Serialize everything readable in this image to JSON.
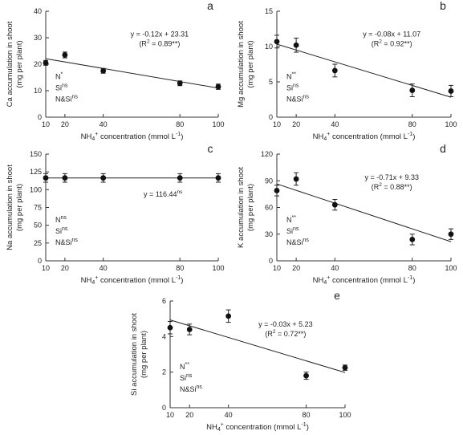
{
  "chart_data": [
    {
      "type": "scatter",
      "panel_label": "a",
      "xlabel_main": "NH",
      "xlabel_sub": "4",
      "xlabel_sup": "+",
      "xlabel_rest": " concentration (mmol L",
      "xlabel_exp": "-1",
      "xlabel_close": ")",
      "ylabel_1": "Ca accumulation in shoot",
      "ylabel_2": "(mg per plant)",
      "x_ticks": [
        "10",
        "20",
        "40",
        "80",
        "100"
      ],
      "y_ticks": [
        "0",
        "10",
        "20",
        "30",
        "40"
      ],
      "ylim": [
        0,
        40
      ],
      "x": [
        10,
        20,
        40,
        80,
        100
      ],
      "y": [
        20.5,
        23.5,
        17.5,
        12.8,
        11.5
      ],
      "err": [
        0.9,
        1.1,
        0.9,
        0.9,
        1.0
      ],
      "fit": {
        "intercept": 23.31,
        "slope": -0.12
      },
      "equation": "y = -0.12x + 23.31",
      "r2_prefix": "(R",
      "r2_exp": "2",
      "r2_value": " = 0.89**)",
      "stats": [
        {
          "label": "N",
          "sig": "*"
        },
        {
          "label": "Si",
          "sig": "ns"
        },
        {
          "label": "N&Si",
          "sig": "ns"
        }
      ]
    },
    {
      "type": "scatter",
      "panel_label": "b",
      "xlabel_main": "NH",
      "xlabel_sub": "4",
      "xlabel_sup": "+",
      "xlabel_rest": " concentration (mmol L",
      "xlabel_exp": "-1",
      "xlabel_close": ")",
      "ylabel_1": "Mg accumulation in shoot",
      "ylabel_2": "(mg per plant)",
      "x_ticks": [
        "10",
        "20",
        "40",
        "80",
        "100"
      ],
      "y_ticks": [
        "0",
        "5",
        "10",
        "15"
      ],
      "ylim": [
        0,
        15
      ],
      "x": [
        10,
        20,
        40,
        80,
        100
      ],
      "y": [
        10.7,
        10.2,
        6.6,
        3.8,
        3.7
      ],
      "err": [
        0.9,
        1.0,
        0.9,
        0.9,
        0.8
      ],
      "fit": {
        "intercept": 11.07,
        "slope": -0.08
      },
      "equation": "y = -0.08x + 11.07",
      "r2_prefix": "(R",
      "r2_exp": "2",
      "r2_value": " = 0.92**)",
      "stats": [
        {
          "label": "N",
          "sig": "**"
        },
        {
          "label": "Si",
          "sig": "ns"
        },
        {
          "label": "N&Si",
          "sig": "ns"
        }
      ]
    },
    {
      "type": "scatter",
      "panel_label": "c",
      "xlabel_main": "NH",
      "xlabel_sub": "4",
      "xlabel_sup": "+",
      "xlabel_rest": " concentration (mmol L",
      "xlabel_exp": "-1",
      "xlabel_close": ")",
      "ylabel_1": "Na accumulation in shoot",
      "ylabel_2": "(mg per plant)",
      "x_ticks": [
        "10",
        "20",
        "40",
        "80",
        "100"
      ],
      "y_ticks": [
        "0",
        "25",
        "50",
        "75",
        "100",
        "125",
        "150"
      ],
      "ylim": [
        0,
        150
      ],
      "x": [
        10,
        20,
        40,
        80,
        100
      ],
      "y": [
        116.5,
        116.5,
        116.5,
        116.5,
        116.5
      ],
      "err": [
        6,
        6,
        6,
        6,
        6
      ],
      "fit": {
        "intercept": 116.44,
        "slope": 0
      },
      "equation": "y = 116.44",
      "equation_sup": "ns",
      "stats": [
        {
          "label": "N",
          "sig": "ns"
        },
        {
          "label": "Si",
          "sig": "ns"
        },
        {
          "label": "N&Si",
          "sig": "ns"
        }
      ]
    },
    {
      "type": "scatter",
      "panel_label": "d",
      "xlabel_main": "NH",
      "xlabel_sub": "4",
      "xlabel_sup": "+",
      "xlabel_rest": " concentration (mmol L",
      "xlabel_exp": "-1",
      "xlabel_close": ")",
      "ylabel_1": "K accumulation in shoot",
      "ylabel_2": "(mg per plant)",
      "x_ticks": [
        "10",
        "20",
        "40",
        "80",
        "100"
      ],
      "y_ticks": [
        "0",
        "30",
        "60",
        "90",
        "120"
      ],
      "ylim": [
        0,
        120
      ],
      "x": [
        10,
        20,
        40,
        80,
        100
      ],
      "y": [
        79,
        92,
        63,
        24,
        30
      ],
      "err": [
        6,
        7,
        6,
        6,
        6
      ],
      "fit": {
        "intercept": 9.33,
        "slope": -0.71
      },
      "equation": "y = -0.71x + 9.33",
      "r2_prefix": "(R",
      "r2_exp": "2",
      "r2_value": " = 0.88**)",
      "stats": [
        {
          "label": "N",
          "sig": "**"
        },
        {
          "label": "Si",
          "sig": "ns"
        },
        {
          "label": "N&Si",
          "sig": "ns"
        }
      ]
    },
    {
      "type": "scatter",
      "panel_label": "e",
      "xlabel_main": "NH",
      "xlabel_sub": "4",
      "xlabel_sup": "+",
      "xlabel_rest": " concentration (mmol L",
      "xlabel_exp": "-1",
      "xlabel_close": ")",
      "ylabel_1": "Si accumulation in shoot",
      "ylabel_2": "(mg per plant)",
      "x_ticks": [
        "10",
        "20",
        "40",
        "80",
        "100"
      ],
      "y_ticks": [
        "0",
        "2",
        "4",
        "6"
      ],
      "ylim": [
        0,
        6
      ],
      "x": [
        10,
        20,
        40,
        80,
        100
      ],
      "y": [
        4.5,
        4.4,
        5.15,
        1.8,
        2.25
      ],
      "err": [
        0.35,
        0.3,
        0.35,
        0.2,
        0.15
      ],
      "fit": {
        "intercept": 5.23,
        "slope": -0.03
      },
      "equation": "y = -0.03x + 5.23",
      "r2_prefix": "(R",
      "r2_exp": "2",
      "r2_value": " = 0.72**)",
      "stats": [
        {
          "label": "N",
          "sig": "**"
        },
        {
          "label": "Si",
          "sig": "ns"
        },
        {
          "label": "N&Si",
          "sig": "ns"
        }
      ]
    }
  ]
}
